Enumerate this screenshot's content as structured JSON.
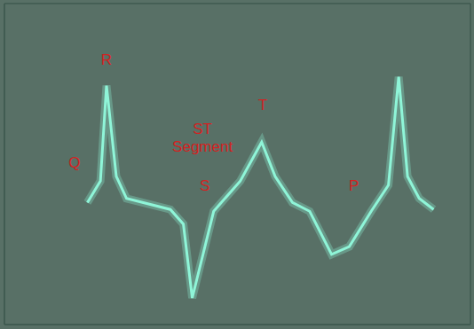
{
  "chart_data": {
    "type": "line",
    "x": [
      1.78,
      2.06,
      2.19,
      2.4,
      2.62,
      3.56,
      3.84,
      4.03,
      4.49,
      5.06,
      5.52,
      5.81,
      6.18,
      6.55,
      7.02,
      7.4,
      7.87,
      8.24,
      8.46,
      8.65,
      8.9,
      9.21
    ],
    "series": [
      {
        "color": "#8ff5d8",
        "values": [
          2.66,
          3.13,
          5.21,
          3.23,
          2.75,
          2.51,
          2.19,
          0.58,
          2.47,
          3.13,
          3.98,
          3.23,
          2.66,
          2.47,
          1.53,
          1.7,
          2.47,
          3.04,
          5.4,
          3.23,
          2.75,
          2.51
        ]
      }
    ],
    "xlim": [
      0,
      10
    ],
    "ylim": [
      0,
      7
    ],
    "xticks": [
      0,
      1,
      2,
      3,
      4,
      5,
      6,
      7,
      8,
      9,
      10
    ],
    "yticks": [
      0,
      1,
      2,
      3,
      4,
      5,
      6,
      7
    ],
    "grid": true,
    "tick_labels": false,
    "annotations": [
      {
        "text": "R",
        "x": 2.19,
        "y": 5.75
      },
      {
        "text": "Q",
        "x": 1.5,
        "y": 3.5
      },
      {
        "text": "ST Segment",
        "x": 4.25,
        "y": 4.05
      },
      {
        "text": "T",
        "x": 5.54,
        "y": 4.75
      },
      {
        "text": "S",
        "x": 4.3,
        "y": 3.0
      },
      {
        "text": "P",
        "x": 7.5,
        "y": 3.0
      }
    ]
  }
}
